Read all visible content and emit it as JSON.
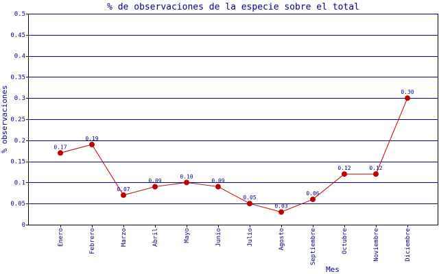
{
  "chart_data": {
    "type": "line",
    "title": "% de observaciones de la especie sobre el total",
    "xlabel": "Mes",
    "ylabel": "% observaciones",
    "categories": [
      "Enero",
      "Febrero",
      "Marzo",
      "Abril",
      "Mayo",
      "Junio",
      "Julio",
      "Agosto",
      "Septiembre",
      "Octubre",
      "Noviembre",
      "Diciembre"
    ],
    "values": [
      0.17,
      0.19,
      0.07,
      0.09,
      0.1,
      0.09,
      0.05,
      0.03,
      0.06,
      0.12,
      0.12,
      0.3
    ],
    "value_labels": [
      "0.17",
      "0.19",
      "0.07",
      "0.09",
      "0.10",
      "0.09",
      "0.05",
      "0.03",
      "0.06",
      "0.12",
      "0.12",
      "0.30"
    ],
    "ylim": [
      0,
      0.5
    ],
    "yticks": [
      0,
      0.05,
      0.1,
      0.15,
      0.2,
      0.25,
      0.3,
      0.35,
      0.4,
      0.45,
      0.5
    ],
    "ytick_labels": [
      "0",
      "0.05",
      "0.1",
      "0.15",
      "0.2",
      "0.25",
      "0.3",
      "0.35",
      "0.4",
      "0.45",
      "0.5"
    ],
    "grid": true,
    "colors": {
      "title": "#000080",
      "text": "#000080",
      "axis": "#000000",
      "grid": "#000080",
      "line": "#c00000",
      "marker": "#c00000"
    }
  }
}
